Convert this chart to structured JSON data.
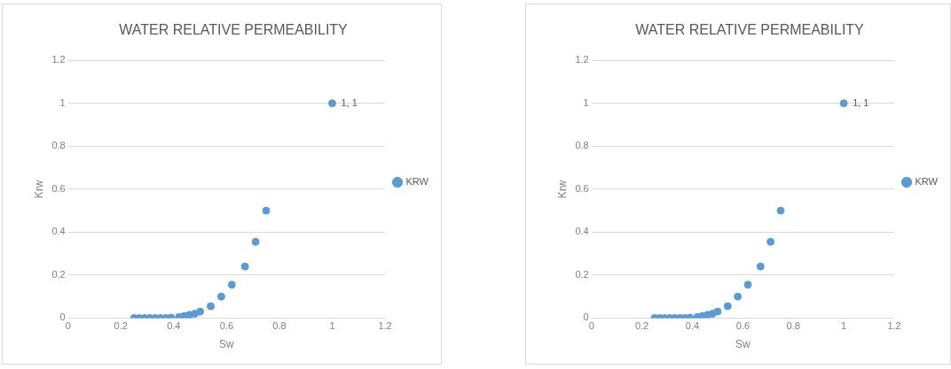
{
  "chart_data": [
    {
      "type": "scatter",
      "title": "WATER RELATIVE PERMEABILITY",
      "xlabel": "Sw",
      "ylabel": "Krw",
      "x": [
        0.25,
        0.27,
        0.29,
        0.31,
        0.33,
        0.35,
        0.37,
        0.39,
        0.42,
        0.44,
        0.46,
        0.48,
        0.5,
        0.54,
        0.58,
        0.62,
        0.67,
        0.71,
        0.75,
        1
      ],
      "series": [
        {
          "name": "KRW",
          "color": "#5b9bd5",
          "values": [
            0,
            0,
            0,
            0,
            0,
            0,
            0,
            0.002,
            0.005,
            0.01,
            0.015,
            0.02,
            0.03,
            0.055,
            0.1,
            0.155,
            0.24,
            0.355,
            0.5,
            1
          ]
        }
      ],
      "xlim": [
        0,
        1.2
      ],
      "xticks": [
        0,
        0.2,
        0.4,
        0.6,
        0.8,
        1,
        1.2
      ],
      "ylim": [
        0,
        1.2
      ],
      "yticks": [
        0,
        0.2,
        0.4,
        0.6,
        0.8,
        1,
        1.2
      ],
      "annotations": [
        {
          "text": "1, 1",
          "x": 1,
          "y": 1
        }
      ],
      "grid": "y",
      "legend": "right",
      "marker": "circle"
    },
    {
      "type": "scatter",
      "title": "WATER RELATIVE PERMEABILITY",
      "xlabel": "Sw",
      "ylabel": "Krw",
      "x": [
        0.25,
        0.27,
        0.29,
        0.31,
        0.33,
        0.35,
        0.37,
        0.39,
        0.42,
        0.44,
        0.46,
        0.48,
        0.5,
        0.54,
        0.58,
        0.62,
        0.67,
        0.71,
        0.75,
        1
      ],
      "series": [
        {
          "name": "KRW",
          "color": "#5b9bd5",
          "values": [
            0,
            0,
            0,
            0,
            0,
            0,
            0,
            0.002,
            0.005,
            0.01,
            0.015,
            0.02,
            0.03,
            0.055,
            0.1,
            0.155,
            0.24,
            0.355,
            0.5,
            1
          ]
        }
      ],
      "xlim": [
        0,
        1.2
      ],
      "xticks": [
        0,
        0.2,
        0.4,
        0.6,
        0.8,
        1,
        1.2
      ],
      "ylim": [
        0,
        1.2
      ],
      "yticks": [
        0,
        0.2,
        0.4,
        0.6,
        0.8,
        1,
        1.2
      ],
      "annotations": [
        {
          "text": "1, 1",
          "x": 1,
          "y": 1
        }
      ],
      "grid": "y",
      "legend": "right",
      "marker": "circle"
    }
  ]
}
